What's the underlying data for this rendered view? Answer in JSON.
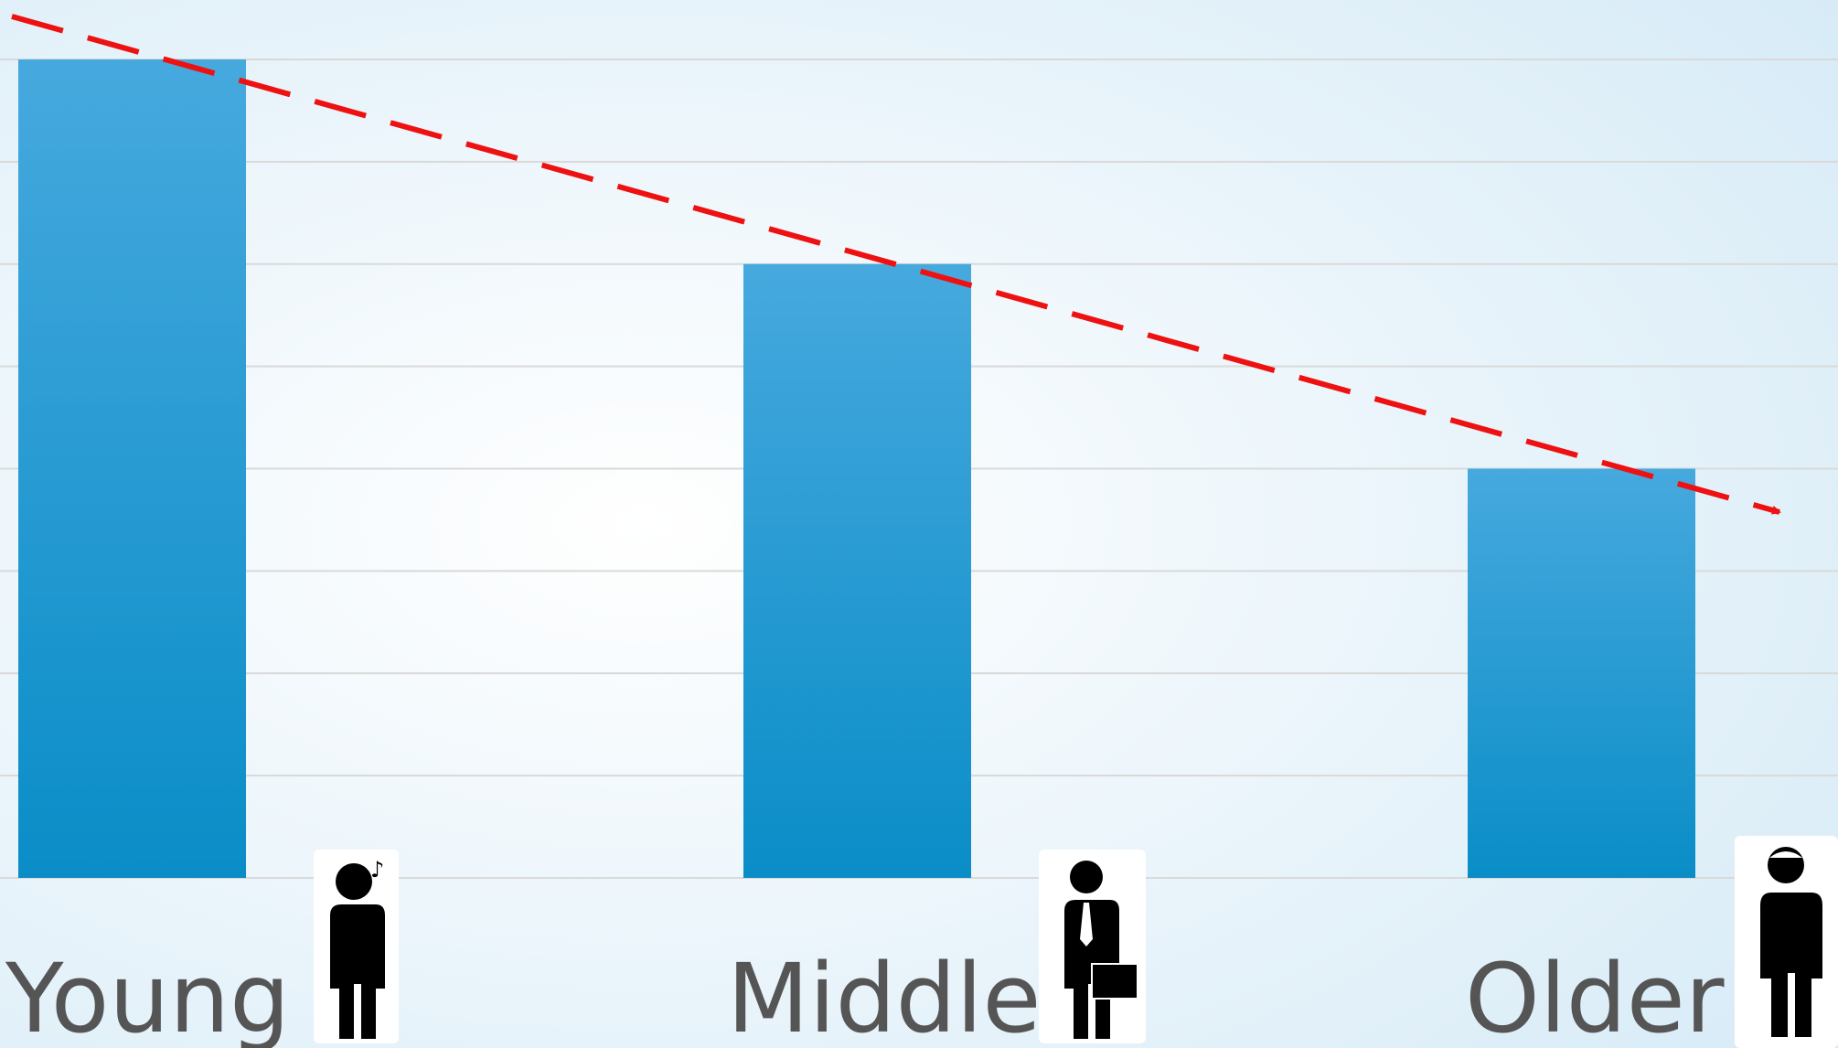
{
  "chart_data": {
    "type": "bar",
    "categories": [
      "Young",
      "Middle",
      "Older"
    ],
    "values": [
      8,
      6,
      4
    ],
    "color": "#2a9bd4",
    "ylim": [
      0,
      8
    ],
    "yticks": [
      0,
      1,
      2,
      3,
      4,
      5,
      6,
      7,
      8
    ],
    "grid": true
  }
}
